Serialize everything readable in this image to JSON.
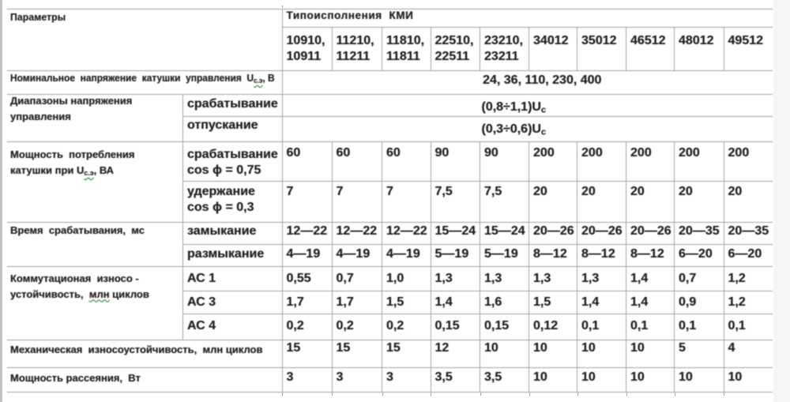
{
  "colors": {
    "page_bg": "#ffffff",
    "left_strip": "#c4c4c4",
    "right_margin": "#f5f5f5",
    "border": "#a2a2a7",
    "text": "#1f1f1f",
    "squiggle": "#2f9e2f"
  },
  "header": {
    "params_label": "Параметры",
    "group_label": "Типоисполнения  КМИ",
    "type_columns": [
      "10910,\n10911",
      "11210,\n11211",
      "11810,\n11811",
      "22510,\n22511",
      "23210,\n23211",
      "34012",
      "35012",
      "46512",
      "48012",
      "49512"
    ]
  },
  "rows": {
    "nominal_voltage": {
      "label_rich": [
        {
          "t": "Номинальное  напряжение  катушки  управления  U"
        },
        {
          "t": "с.э",
          "sub": true,
          "squiggle": true
        },
        {
          "t": ", В"
        }
      ],
      "value": "24, 36, 110, 230, 400"
    },
    "voltage_range": {
      "label": "Диапазоны напряжения\nуправления",
      "subrows": [
        {
          "sublabel": "срабатывание",
          "value_rich": [
            {
              "t": "(0,8÷1,1)U"
            },
            {
              "t": "с",
              "sub": true
            }
          ]
        },
        {
          "sublabel": "отпускание",
          "value_rich": [
            {
              "t": "(0,3÷0,6)U"
            },
            {
              "t": "с",
              "sub": true
            }
          ]
        }
      ]
    },
    "coil_power": {
      "label_rich": [
        {
          "t": "Мощность  потребления\nкатушки при U"
        },
        {
          "t": "с.э",
          "sub": true,
          "squiggle": true
        },
        {
          "t": ", ВА"
        }
      ],
      "subrows": [
        {
          "sublabel": "срабатывание\ncos ϕ = 0,75",
          "values": [
            "60",
            "60",
            "60",
            "90",
            "90",
            "200",
            "200",
            "200",
            "200",
            "200"
          ]
        },
        {
          "sublabel": "удержание\ncos ϕ = 0,3",
          "values": [
            "7",
            "7",
            "7",
            "7,5",
            "7,5",
            "20",
            "20",
            "20",
            "20",
            "20"
          ]
        }
      ]
    },
    "response_time": {
      "label": "Время  срабатывания,  мс",
      "subrows": [
        {
          "sublabel": "замыкание",
          "values": [
            "12—22",
            "12—22",
            "12—22",
            "15—24",
            "15—24",
            "20—26",
            "20—26",
            "20—26",
            "20—35",
            "20—35"
          ]
        },
        {
          "sublabel": "размыкание",
          "values": [
            "4—19",
            "4—19",
            "4—19",
            "5—19",
            "5—19",
            "8—12",
            "8—12",
            "8—12",
            "6—20",
            "6—20"
          ]
        }
      ]
    },
    "switching_endurance": {
      "label_rich": [
        {
          "t": "Коммутационая  износо -\nустойчивость,  "
        },
        {
          "t": "млн",
          "squiggle": true
        },
        {
          "t": " циклов"
        }
      ],
      "subrows": [
        {
          "sublabel": "АС 1",
          "values": [
            "0,55",
            "0,7",
            "1,0",
            "1,3",
            "1,3",
            "1,3",
            "1,3",
            "1,4",
            "0,7",
            "1,2"
          ]
        },
        {
          "sublabel": "АС 3",
          "values": [
            "1,7",
            "1,7",
            "1,5",
            "1,4",
            "1,6",
            "1,5",
            "1,4",
            "1,4",
            "0,9",
            "1,2"
          ]
        },
        {
          "sublabel": "АС 4",
          "values": [
            "0,2",
            "0,2",
            "0,2",
            "0,15",
            "0,15",
            "0,12",
            "0,1",
            "0,1",
            "0,1",
            "0,1"
          ]
        }
      ]
    },
    "mechanical_endurance": {
      "label": "Механическая  износоустойчивость,  млн циклов",
      "values": [
        "15",
        "15",
        "15",
        "12",
        "10",
        "10",
        "10",
        "10",
        "5",
        "4"
      ]
    },
    "power_dissipation": {
      "label": "Мощность рассеяния,  Вт",
      "values": [
        "3",
        "3",
        "3",
        "3,5",
        "3,5",
        "10",
        "10",
        "10",
        "10",
        "10"
      ]
    }
  }
}
